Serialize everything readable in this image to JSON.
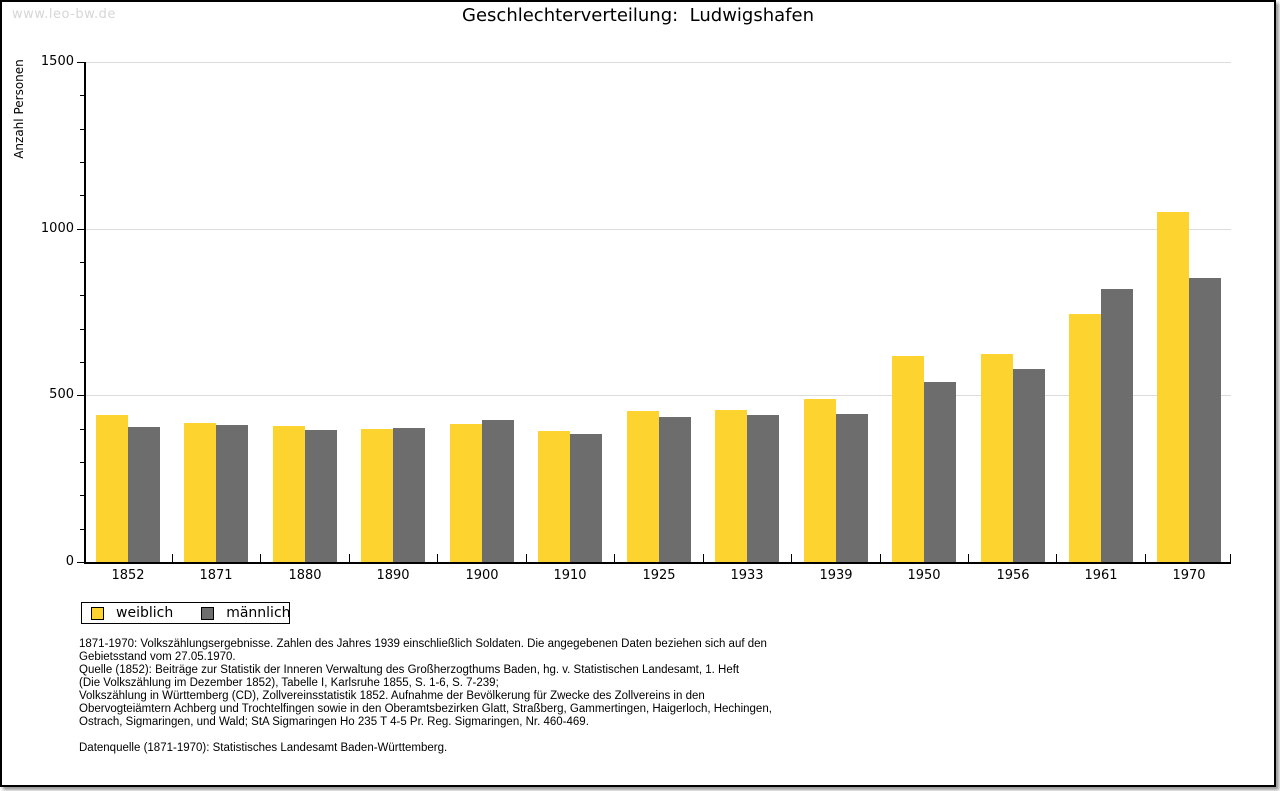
{
  "watermark": "www.leo-bw.de",
  "chart_data": {
    "type": "bar",
    "title": "Geschlechterverteilung:  Ludwigshafen",
    "ylabel": "Anzahl Personen",
    "xlabel": "",
    "categories": [
      "1852",
      "1871",
      "1880",
      "1890",
      "1900",
      "1910",
      "1925",
      "1933",
      "1939",
      "1950",
      "1956",
      "1961",
      "1970"
    ],
    "series": [
      {
        "name": "weiblich",
        "color": "#fcd32f",
        "values": [
          440,
          418,
          407,
          400,
          415,
          392,
          453,
          456,
          489,
          618,
          625,
          744,
          1049
        ]
      },
      {
        "name": "männlich",
        "color": "#6d6d6d",
        "values": [
          405,
          410,
          395,
          403,
          425,
          383,
          436,
          442,
          444,
          540,
          579,
          820,
          851
        ]
      }
    ],
    "ylim": [
      0,
      1500
    ],
    "yticks_major": [
      0,
      500,
      1000,
      1500
    ],
    "ytick_minor_step": 100,
    "grid": "horizontal-major-only",
    "legend_position": "bottom-left"
  },
  "footer": {
    "notes": [
      "1871-1970: Volkszählungsergebnisse. Zahlen des Jahres 1939 einschließlich Soldaten. Die angegebenen Daten beziehen sich auf den",
      "Gebietsstand vom 27.05.1970.",
      "Quelle (1852): Beiträge zur Statistik der Inneren Verwaltung des Großherzogthums Baden, hg. v. Statistischen Landesamt, 1. Heft",
      "(Die Volkszählung im Dezember 1852), Tabelle I, Karlsruhe 1855, S. 1-6, S. 7-239;",
      "Volkszählung in Württemberg (CD), Zollvereinsstatistik 1852. Aufnahme der Bevölkerung für Zwecke des Zollvereins in den",
      "Obervogteiämtern Achberg und Trochtelfingen sowie in den Oberamtsbezirken Glatt, Straßberg, Gammertingen, Haigerloch, Hechingen,",
      "Ostrach, Sigmaringen, und Wald; StA Sigmaringen Ho 235 T 4-5 Pr. Reg. Sigmaringen, Nr. 460-469."
    ],
    "datenquelle": "Datenquelle (1871-1970): Statistisches Landesamt Baden-Württemberg."
  }
}
